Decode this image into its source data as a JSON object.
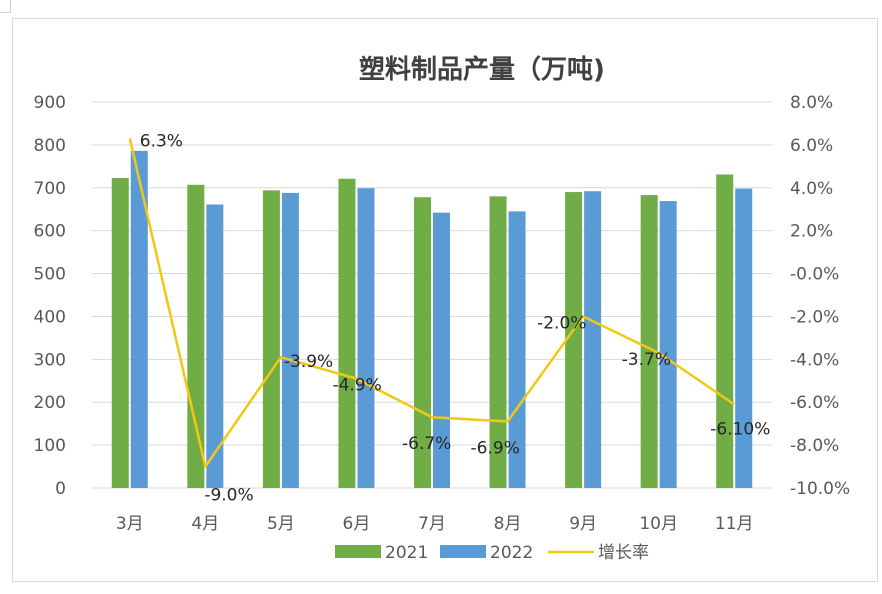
{
  "chart_data": {
    "type": "bar",
    "title": "塑料制品产量（万吨)",
    "categories": [
      "3月",
      "4月",
      "5月",
      "6月",
      "7月",
      "8月",
      "9月",
      "10月",
      "11月"
    ],
    "series": [
      {
        "name": "2021",
        "type": "bar",
        "axis": "left",
        "color": "#70AD47",
        "values": [
          723,
          707,
          694,
          721,
          678,
          680,
          690,
          683,
          731
        ]
      },
      {
        "name": "2022",
        "type": "bar",
        "axis": "left",
        "color": "#5B9BD5",
        "values": [
          786,
          661,
          688,
          699,
          642,
          645,
          692,
          669,
          698
        ]
      },
      {
        "name": "增长率",
        "type": "line",
        "axis": "right",
        "color": "#F2C811",
        "values": [
          6.3,
          -9.0,
          -3.9,
          -4.9,
          -6.7,
          -6.9,
          -2.0,
          -3.7,
          -6.1
        ],
        "labels": [
          "6.3%",
          "-9.0%",
          "-3.9%",
          "-4.9%",
          "-6.7%",
          "-6.9%",
          "-2.0%",
          "-3.7%",
          "-6.10%"
        ]
      }
    ],
    "y_left": {
      "min": 0,
      "max": 900,
      "step": 100,
      "tick_labels": [
        "0",
        "100",
        "200",
        "300",
        "400",
        "500",
        "600",
        "700",
        "800",
        "900"
      ]
    },
    "y_right": {
      "min": -10,
      "max": 8,
      "step": 2,
      "tick_labels": [
        "-10.0%",
        "-8.0%",
        "-6.0%",
        "-4.0%",
        "-2.0%",
        "-0.0%",
        "2.0%",
        "4.0%",
        "6.0%",
        "8.0%"
      ]
    },
    "grid": true,
    "legend": "bottom"
  }
}
